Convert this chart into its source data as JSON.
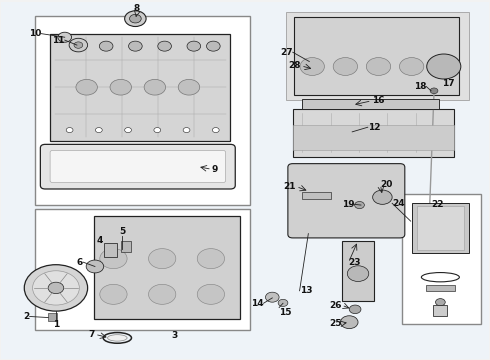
{
  "lc": "#222222",
  "tc": "#111111",
  "fs": 6.5,
  "bg": "#eef3f8"
}
